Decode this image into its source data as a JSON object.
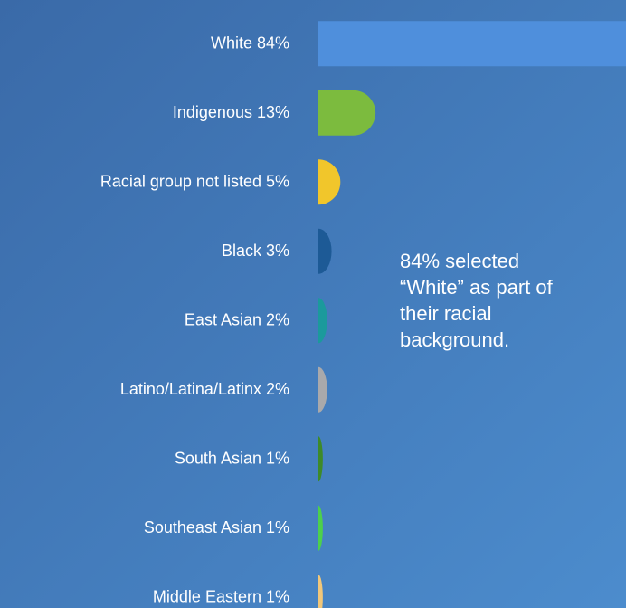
{
  "chart_data": {
    "type": "bar",
    "orientation": "horizontal",
    "categories": [
      "White",
      "Indigenous",
      "Racial group not listed",
      "Black",
      "East Asian",
      "Latino/Latina/Latinx",
      "South Asian",
      "Southeast Asian",
      "Middle Eastern"
    ],
    "values": [
      84,
      13,
      5,
      3,
      2,
      2,
      1,
      1,
      1
    ],
    "value_labels": [
      "84%",
      "13%",
      "5%",
      "3%",
      "2%",
      "2%",
      "1%",
      "1%",
      "1%"
    ],
    "colors": [
      "#4f8fdc",
      "#7cbb3e",
      "#f1c62b",
      "#1d5a96",
      "#1b9a9c",
      "#a9a9ab",
      "#3e8a29",
      "#4dd04c",
      "#f1c77a"
    ],
    "xlim": [
      0,
      70
    ],
    "annotation": [
      "84% selected",
      "“White” as part of",
      "their racial",
      "background."
    ]
  }
}
